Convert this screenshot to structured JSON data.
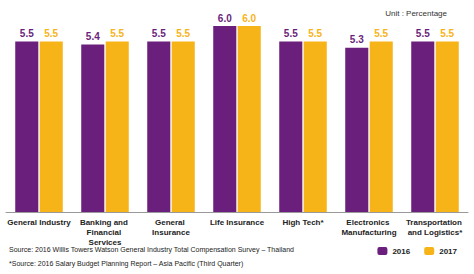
{
  "chart_data": {
    "type": "bar",
    "subtitle": "Unit : Percentage",
    "categories": [
      "General Industry",
      "Banking and Financial Services",
      "General Insurance",
      "Life Insurance",
      "High Tech*",
      "Electronics Manufacturing",
      "Transportation and Logistics*"
    ],
    "series": [
      {
        "name": "2016",
        "color": "#6b1f7c",
        "values": [
          5.5,
          5.4,
          5.5,
          6.0,
          5.5,
          5.3,
          5.5
        ],
        "value_labels": [
          "5.5",
          "5.4",
          "5.5",
          "6.0",
          "5.5",
          "5.3",
          "5.5"
        ]
      },
      {
        "name": "2017",
        "color": "#f6b418",
        "values": [
          5.5,
          5.5,
          5.5,
          6.0,
          5.5,
          5.5,
          5.5
        ],
        "value_labels": [
          "5.5",
          "5.5",
          "5.5",
          "6.0",
          "5.5",
          "5.5",
          "5.5"
        ]
      }
    ],
    "ylim": [
      0,
      6
    ],
    "yticks": [
      0,
      1,
      2,
      3,
      4,
      5,
      6
    ],
    "grid": false,
    "legend": "lower right",
    "data_labels": true,
    "tick_labels": "x",
    "annotations": [
      "Source: 2016 Willis Towers Watson General Industry Total Compensation Survey – Thailand",
      "*Source: 2016 Salary Budget Planning Report – Asia Pacific (Third Quarter)"
    ]
  }
}
